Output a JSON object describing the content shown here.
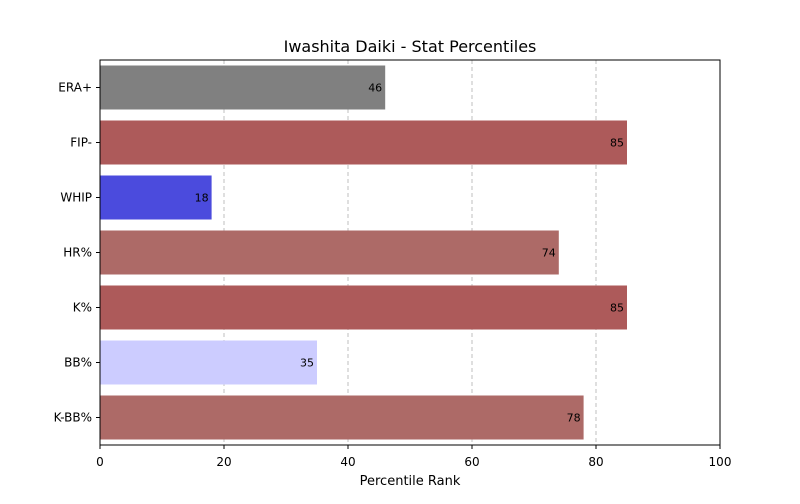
{
  "chart_data": {
    "type": "bar",
    "orientation": "horizontal",
    "title": "Iwashita Daiki - Stat Percentiles",
    "xlabel": "Percentile Rank",
    "ylabel": "",
    "xlim": [
      0,
      100
    ],
    "xticks": [
      "0",
      "20",
      "40",
      "60",
      "80",
      "100"
    ],
    "grid": "vertical dashed",
    "legend": "none",
    "categories": [
      "ERA+",
      "FIP-",
      "WHIP",
      "HR%",
      "K%",
      "BB%",
      "K-BB%"
    ],
    "values": [
      46,
      85,
      18,
      74,
      85,
      35,
      78
    ],
    "value_labels": [
      "46",
      "85",
      "18",
      "74",
      "85",
      "35",
      "78"
    ],
    "bar_colors": [
      "#808080",
      "#ad5a5a",
      "#4b4bdd",
      "#ad6a67",
      "#ad5a5a",
      "#ccccff",
      "#ad6a67"
    ]
  }
}
